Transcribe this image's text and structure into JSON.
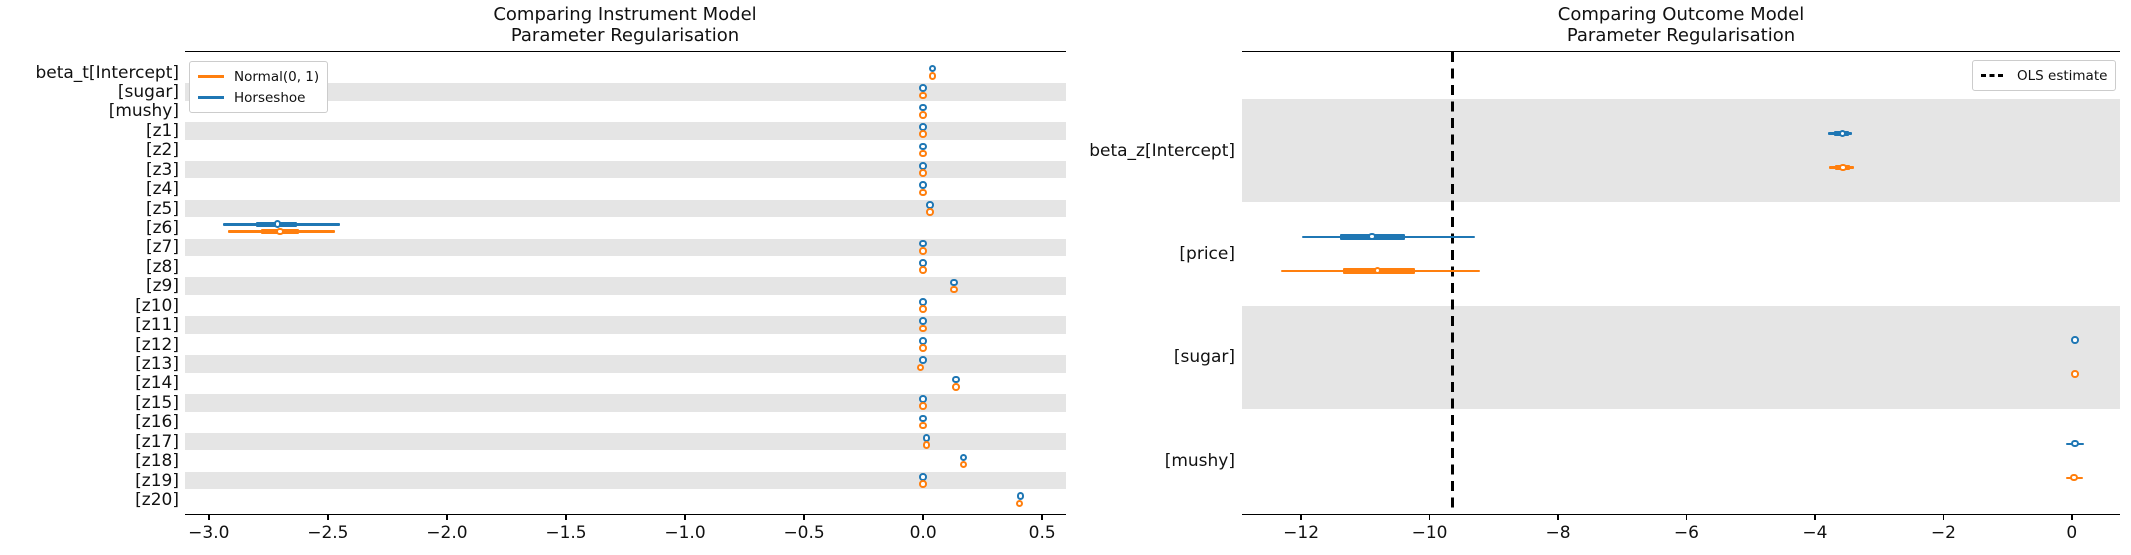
{
  "colors": {
    "horseshoe_blue": "#1f77b4",
    "normal_orange": "#ff7f0e",
    "band_gray": "#e5e5e5",
    "ols_black": "#000000"
  },
  "chart_data": [
    {
      "type": "forest",
      "title": "Comparing Instrument Model Parameter Regularisation",
      "title_line1": "Comparing Instrument Model",
      "title_line2": "Parameter Regularisation",
      "legend_position": "top-left",
      "legend": [
        {
          "label": "Normal(0, 1)",
          "series": "normal",
          "color": "#ff7f0e",
          "style": "solid"
        },
        {
          "label": "Horseshoe",
          "series": "horseshoe",
          "color": "#1f77b4",
          "style": "solid"
        }
      ],
      "xlim": [
        -3.1,
        0.6
      ],
      "xticks": [
        -3.0,
        -2.5,
        -2.0,
        -1.5,
        -1.0,
        -0.5,
        0.0,
        0.5
      ],
      "xtick_labels": [
        "−3.0",
        "−2.5",
        "−2.0",
        "−1.5",
        "−1.0",
        "−0.5",
        "0.0",
        "0.5"
      ],
      "grid": false,
      "rows": [
        {
          "label": "beta_t[Intercept]",
          "horseshoe": {
            "mean": 0.04
          },
          "normal": {
            "mean": 0.04
          }
        },
        {
          "label": "[sugar]",
          "horseshoe": {
            "mean": 0.0
          },
          "normal": {
            "mean": 0.0
          }
        },
        {
          "label": "[mushy]",
          "horseshoe": {
            "mean": 0.0
          },
          "normal": {
            "mean": 0.0
          }
        },
        {
          "label": "[z1]",
          "horseshoe": {
            "mean": 0.0
          },
          "normal": {
            "mean": 0.0
          }
        },
        {
          "label": "[z2]",
          "horseshoe": {
            "mean": 0.0
          },
          "normal": {
            "mean": 0.0
          }
        },
        {
          "label": "[z3]",
          "horseshoe": {
            "mean": 0.0
          },
          "normal": {
            "mean": 0.0
          }
        },
        {
          "label": "[z4]",
          "horseshoe": {
            "mean": 0.0
          },
          "normal": {
            "mean": 0.0
          }
        },
        {
          "label": "[z5]",
          "horseshoe": {
            "mean": 0.03
          },
          "normal": {
            "mean": 0.03
          }
        },
        {
          "label": "[z6]",
          "horseshoe": {
            "mean": -2.71,
            "hdi": [
              -2.94,
              -2.45
            ],
            "iqr": [
              -2.8,
              -2.63
            ]
          },
          "normal": {
            "mean": -2.7,
            "hdi": [
              -2.92,
              -2.47
            ],
            "iqr": [
              -2.78,
              -2.62
            ]
          }
        },
        {
          "label": "[z7]",
          "horseshoe": {
            "mean": 0.0
          },
          "normal": {
            "mean": 0.0
          }
        },
        {
          "label": "[z8]",
          "horseshoe": {
            "mean": 0.0
          },
          "normal": {
            "mean": 0.0
          }
        },
        {
          "label": "[z9]",
          "horseshoe": {
            "mean": 0.13
          },
          "normal": {
            "mean": 0.13
          }
        },
        {
          "label": "[z10]",
          "horseshoe": {
            "mean": 0.0
          },
          "normal": {
            "mean": 0.0
          }
        },
        {
          "label": "[z11]",
          "horseshoe": {
            "mean": 0.0
          },
          "normal": {
            "mean": 0.0
          }
        },
        {
          "label": "[z12]",
          "horseshoe": {
            "mean": 0.0
          },
          "normal": {
            "mean": 0.0
          }
        },
        {
          "label": "[z13]",
          "horseshoe": {
            "mean": 0.0
          },
          "normal": {
            "mean": -0.01
          }
        },
        {
          "label": "[z14]",
          "horseshoe": {
            "mean": 0.14
          },
          "normal": {
            "mean": 0.14
          }
        },
        {
          "label": "[z15]",
          "horseshoe": {
            "mean": 0.0
          },
          "normal": {
            "mean": 0.0
          }
        },
        {
          "label": "[z16]",
          "horseshoe": {
            "mean": 0.0
          },
          "normal": {
            "mean": 0.0
          }
        },
        {
          "label": "[z17]",
          "horseshoe": {
            "mean": 0.015
          },
          "normal": {
            "mean": 0.015
          }
        },
        {
          "label": "[z18]",
          "horseshoe": {
            "mean": 0.17
          },
          "normal": {
            "mean": 0.17
          }
        },
        {
          "label": "[z19]",
          "horseshoe": {
            "mean": 0.0
          },
          "normal": {
            "mean": 0.0
          }
        },
        {
          "label": "[z20]",
          "horseshoe": {
            "mean": 0.41
          },
          "normal": {
            "mean": 0.405
          }
        }
      ]
    },
    {
      "type": "forest",
      "title": "Comparing Outcome Model Parameter Regularisation",
      "title_line1": "Comparing Outcome Model",
      "title_line2": "Parameter Regularisation",
      "legend_position": "top-right",
      "legend": [
        {
          "label": "OLS estimate",
          "series": "ols",
          "color": "#000000",
          "style": "dashed"
        }
      ],
      "ols_estimate": -9.64,
      "xlim": [
        -12.92,
        0.75
      ],
      "xticks": [
        -12,
        -10,
        -8,
        -6,
        -4,
        -2,
        0
      ],
      "xtick_labels": [
        "−12",
        "−10",
        "−8",
        "−6",
        "−4",
        "−2",
        "0"
      ],
      "grid": false,
      "rows": [
        {
          "label": "beta_z[Intercept]",
          "horseshoe": {
            "mean": -3.57,
            "hdi": [
              -3.8,
              -3.42
            ],
            "iqr": [
              -3.7,
              -3.47
            ]
          },
          "normal": {
            "mean": -3.56,
            "hdi": [
              -3.78,
              -3.39
            ],
            "iqr": [
              -3.68,
              -3.45
            ]
          }
        },
        {
          "label": "[price]",
          "horseshoe": {
            "mean": -10.89,
            "hdi": [
              -11.99,
              -9.29
            ],
            "iqr": [
              -11.4,
              -10.38
            ]
          },
          "normal": {
            "mean": -10.81,
            "hdi": [
              -12.31,
              -9.22
            ],
            "iqr": [
              -11.34,
              -10.23
            ]
          }
        },
        {
          "label": "[sugar]",
          "horseshoe": {
            "mean": 0.05
          },
          "normal": {
            "mean": 0.05
          }
        },
        {
          "label": "[mushy]",
          "horseshoe": {
            "mean": 0.05,
            "hdi": [
              -0.09,
              0.19
            ]
          },
          "normal": {
            "mean": 0.04,
            "hdi": [
              -0.09,
              0.17
            ]
          }
        }
      ]
    }
  ]
}
